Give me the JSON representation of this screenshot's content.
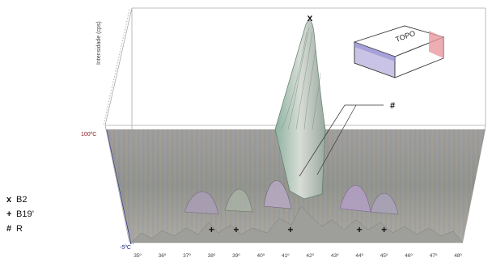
{
  "chart_data": {
    "type": "surface",
    "description_labels": {
      "ylabel": "Intensidade (cps)",
      "temp_top": "100ºC",
      "temp_bottom": "-5ºC"
    },
    "x_ticks": [
      "35º",
      "36º",
      "37º",
      "38º",
      "39º",
      "40º",
      "41º",
      "42º",
      "43º",
      "44º",
      "45º",
      "46º",
      "47º",
      "48º"
    ],
    "x_range": [
      35,
      48
    ],
    "temperature_range": [
      -5,
      100
    ],
    "peaks": [
      {
        "phase": "B2",
        "marker": "x",
        "two_theta": 42.0
      },
      {
        "phase": "B19'",
        "marker": "+",
        "two_theta": 38.0
      },
      {
        "phase": "B19'",
        "marker": "+",
        "two_theta": 39.0
      },
      {
        "phase": "B19'",
        "marker": "+",
        "two_theta": 41.2
      },
      {
        "phase": "B19'",
        "marker": "+",
        "two_theta": 44.0
      },
      {
        "phase": "B19'",
        "marker": "+",
        "two_theta": 45.0
      },
      {
        "phase": "R",
        "marker": "#",
        "two_theta": 42.0
      }
    ],
    "legend": [
      {
        "symbol": "x",
        "label": "B2"
      },
      {
        "symbol": "+",
        "label": "B19’"
      },
      {
        "symbol": "#",
        "label": "R"
      }
    ],
    "inset_label": "TOPO"
  }
}
